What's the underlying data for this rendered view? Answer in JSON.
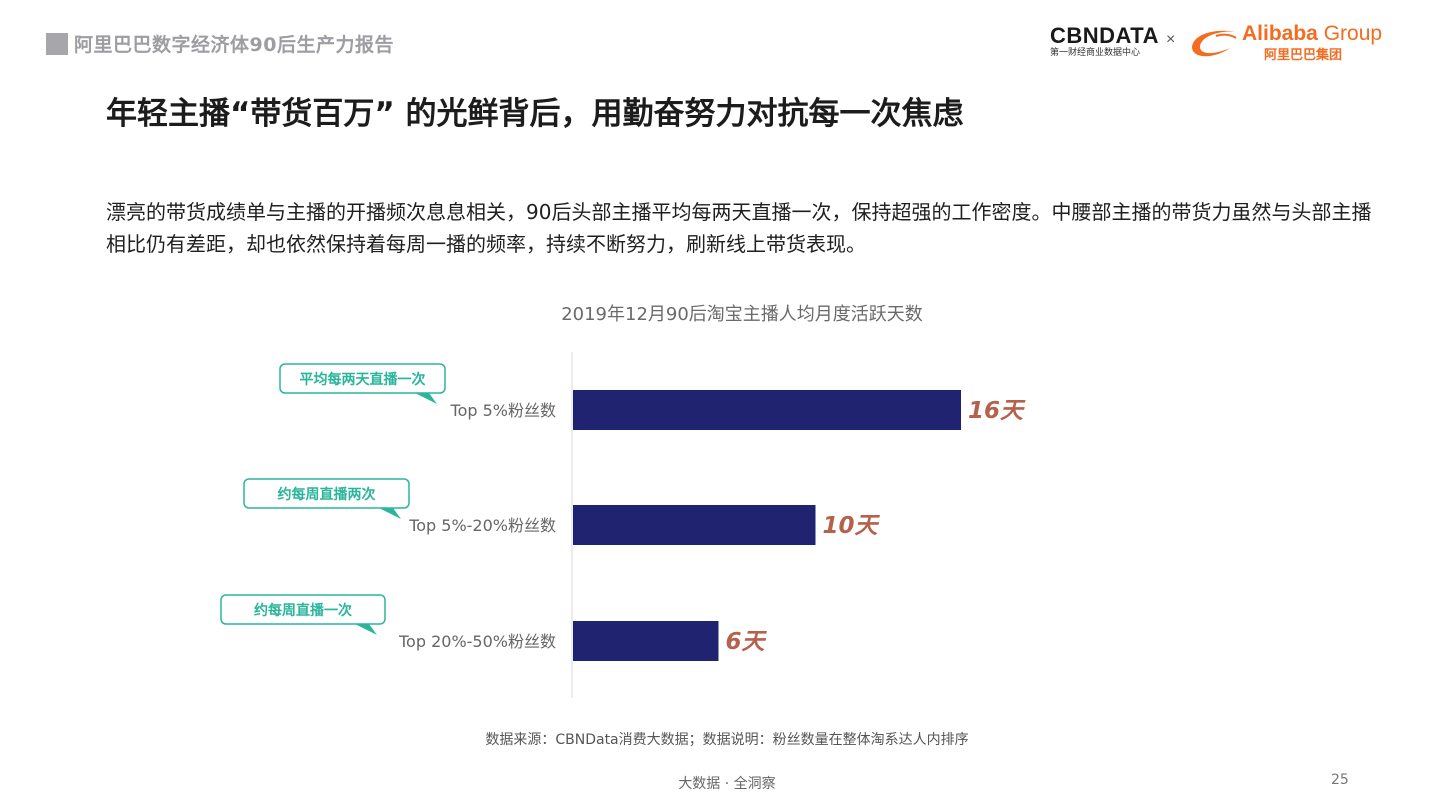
{
  "header": {
    "report_title": "阿里巴巴数字经济体90后生产力报告",
    "logo_cbn": "CBNDATA",
    "logo_cbn_sub": "第一财经商业数据中心",
    "logo_separator": "×",
    "logo_alibaba_en_bold": "Alibaba",
    "logo_alibaba_en_light": " Group",
    "logo_alibaba_cn": "阿里巴巴集团",
    "brand_color": "#f36c21"
  },
  "title": "年轻主播“带货百万” 的光鲜背后，用勤奋努力对抗每一次焦虑",
  "lead": "漂亮的带货成绩单与主播的开播频次息息相关，90后头部主播平均每两天直播一次，保持超强的工作密度。中腰部主播的带货力虽然与头部主播相比仍有差距，却也依然保持着每周一播的频率，持续不断努力，刷新线上带货表现。",
  "chart_data": {
    "type": "bar",
    "orientation": "horizontal",
    "title": "2019年12月90后淘宝主播人均月度活跃天数",
    "categories": [
      "Top 5%粉丝数",
      "Top 5%-20%粉丝数",
      "Top 20%-50%粉丝数"
    ],
    "values": [
      16,
      10,
      6
    ],
    "value_labels": [
      "16天",
      "10天",
      "6天"
    ],
    "callouts": [
      "平均每两天直播一次",
      "约每周直播两次",
      "约每周直播一次"
    ],
    "xlim": [
      0,
      16
    ],
    "bar_color": "#1f2370",
    "label_color": "#b5614b",
    "callout_color": "#2bb59a",
    "grid": false
  },
  "source": "数据来源：CBNData消费大数据；数据说明：粉丝数量在整体淘系达人内排序",
  "footer": "大数据 · 全洞察",
  "page_number": "25"
}
